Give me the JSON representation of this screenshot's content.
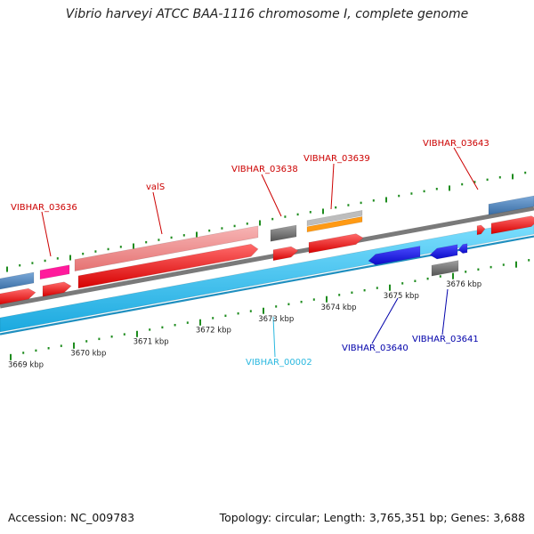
{
  "title": "Vibrio harveyi ATCC BAA-1116 chromosome I, complete genome",
  "accession": "Accession: NC_009783",
  "summary": "Topology: circular; Length: 3,765,351 bp; Genes: 3,688",
  "colors": {
    "cds_forward": "#ee1111",
    "gene_forward": "#f08a8a",
    "cds_reverse": "#1414e6",
    "gene_reverse_track": "#33c6f2",
    "backbone": "#7a7a7a",
    "trna": "#ff1a9c",
    "rrna": "#ff9a14",
    "pseudo": "#8c8c8c",
    "other": "#4b82c0",
    "tick": "#1e8c1e",
    "label_forward": "#cc0000",
    "label_reverse": "#0000aa",
    "label_rna": "#2ab8df"
  },
  "kbp_ticks": [
    {
      "position_kbp": 3669,
      "label": "3669 kbp"
    },
    {
      "position_kbp": 3670,
      "label": "3670 kbp"
    },
    {
      "position_kbp": 3671,
      "label": "3671 kbp"
    },
    {
      "position_kbp": 3672,
      "label": "3672 kbp"
    },
    {
      "position_kbp": 3673,
      "label": "3673 kbp"
    },
    {
      "position_kbp": 3674,
      "label": "3674 kbp"
    },
    {
      "position_kbp": 3675,
      "label": "3675 kbp"
    },
    {
      "position_kbp": 3676,
      "label": "3676 kbp"
    }
  ],
  "features": [
    {
      "name": "VIBHAR_03636",
      "label_color": "label_forward"
    },
    {
      "name": "valS",
      "label_color": "label_forward"
    },
    {
      "name": "VIBHAR_03638",
      "label_color": "label_forward"
    },
    {
      "name": "VIBHAR_03639",
      "label_color": "label_forward"
    },
    {
      "name": "VIBHAR_03643",
      "label_color": "label_forward"
    },
    {
      "name": "VIBHAR_00002",
      "label_color": "label_rna"
    },
    {
      "name": "VIBHAR_03640",
      "label_color": "label_reverse"
    },
    {
      "name": "VIBHAR_03641",
      "label_color": "label_reverse"
    }
  ]
}
